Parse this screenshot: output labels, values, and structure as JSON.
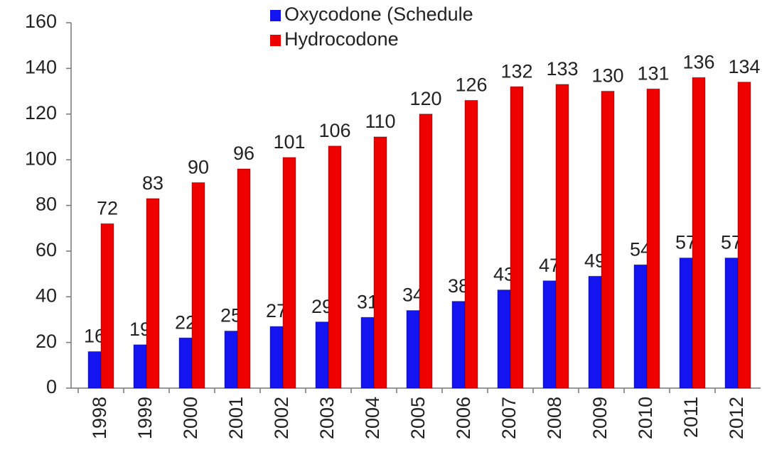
{
  "chart_data": {
    "type": "bar",
    "categories": [
      "1998",
      "1999",
      "2000",
      "2001",
      "2002",
      "2003",
      "2004",
      "2005",
      "2006",
      "2007",
      "2008",
      "2009",
      "2010",
      "2011",
      "2012"
    ],
    "series": [
      {
        "name": "Oxycodone (Schedule",
        "color": "#1414f0",
        "values": [
          16,
          19,
          22,
          25,
          27,
          29,
          31,
          34,
          38,
          43,
          47,
          49,
          54,
          57,
          57
        ]
      },
      {
        "name": "Hydrocodone",
        "color": "#ee0000",
        "values": [
          72,
          83,
          90,
          96,
          101,
          106,
          110,
          120,
          126,
          132,
          133,
          130,
          131,
          136,
          134
        ]
      }
    ],
    "ylim": [
      0,
      160
    ],
    "yticks": [
      0,
      20,
      40,
      60,
      80,
      100,
      120,
      140,
      160
    ],
    "grid": false,
    "legend": "top"
  }
}
